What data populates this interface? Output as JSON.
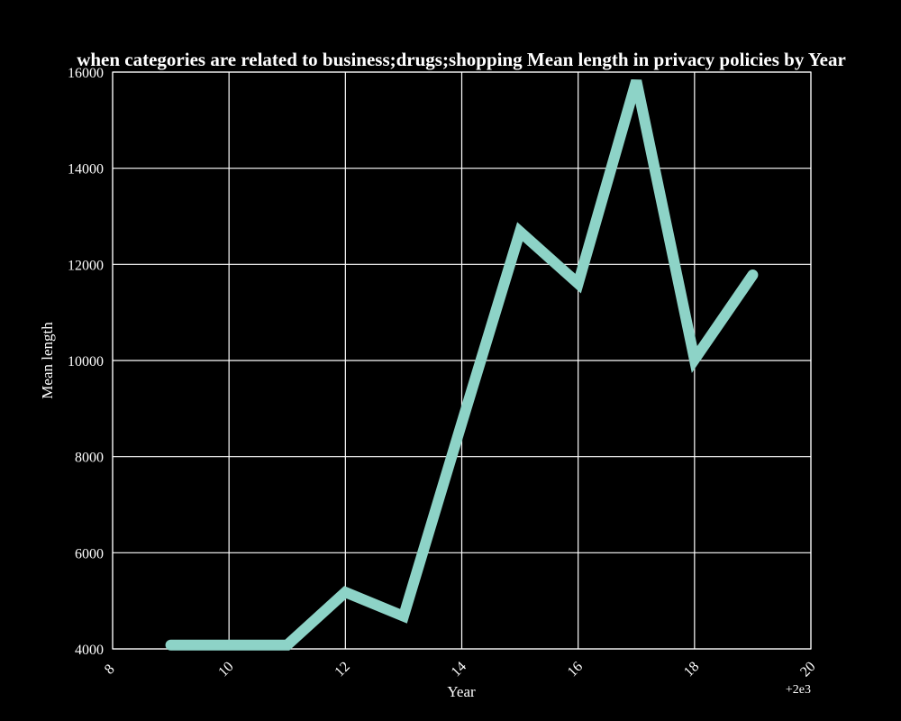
{
  "chart_data": {
    "type": "line",
    "title": "when categories are related to business;drugs;shopping Mean length in privacy policies by Year",
    "xlabel": "Year",
    "ylabel": "Mean length",
    "x_offset_label": "+2e3",
    "xlim": [
      8,
      20
    ],
    "ylim": [
      4000,
      16000
    ],
    "x_ticks": [
      8,
      10,
      12,
      14,
      16,
      18,
      20
    ],
    "y_ticks": [
      4000,
      6000,
      8000,
      10000,
      12000,
      14000,
      16000
    ],
    "grid": true,
    "series": [
      {
        "x": [
          9,
          10,
          11,
          12,
          13,
          14,
          15,
          16,
          17,
          18,
          19
        ],
        "values": [
          4080,
          4080,
          4080,
          5180,
          4680,
          8700,
          12680,
          11600,
          15820,
          10020,
          11780
        ],
        "color": "#8dd3c7"
      }
    ]
  },
  "colors": {
    "background": "#000000",
    "grid": "#ffffff",
    "text": "#ffffff",
    "line": "#8dd3c7"
  }
}
